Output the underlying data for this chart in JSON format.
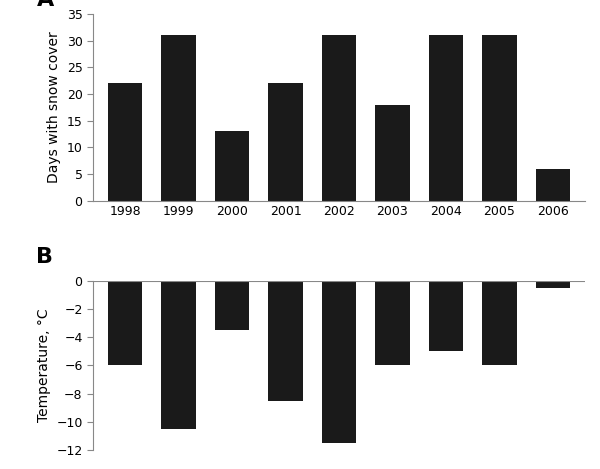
{
  "years": [
    1998,
    1999,
    2000,
    2001,
    2002,
    2003,
    2004,
    2005,
    2006
  ],
  "snow_days": [
    22,
    31,
    13,
    22,
    31,
    18,
    31,
    31,
    6
  ],
  "temperature": [
    -6,
    -10.5,
    -3.5,
    -8.5,
    -11.5,
    -6,
    -5,
    -6,
    -0.5
  ],
  "bar_color": "#1a1a1a",
  "panel_A_label": "A",
  "panel_B_label": "B",
  "ylabel_A": "Days with snow cover",
  "ylabel_B": "Temperature, °C",
  "ylim_A": [
    0,
    35
  ],
  "ylim_B": [
    -12,
    0
  ],
  "yticks_A": [
    0,
    5,
    10,
    15,
    20,
    25,
    30,
    35
  ],
  "yticks_B": [
    -12,
    -10,
    -8,
    -6,
    -4,
    -2,
    0
  ],
  "background_color": "#ffffff",
  "bar_width": 0.65,
  "spine_color": "#888888",
  "tick_label_fontsize": 9,
  "ylabel_fontsize": 10,
  "panel_label_fontsize": 16
}
